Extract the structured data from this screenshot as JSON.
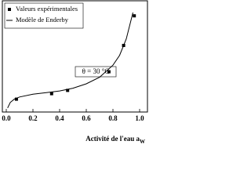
{
  "chart_data": {
    "type": "scatter",
    "xlabel": "Activité de l'eau a",
    "xlabel_sub": "W",
    "annotation": "θ = 30 °C",
    "xlim": [
      0,
      1
    ],
    "ylim": [
      0,
      1
    ],
    "xticks": [
      {
        "value": 0,
        "label": "0.0"
      },
      {
        "value": 0.2,
        "label": "0.2"
      },
      {
        "value": 0.4,
        "label": "0.4"
      },
      {
        "value": 0.6,
        "label": "0.6"
      },
      {
        "value": 0.8,
        "label": "0.8"
      },
      {
        "value": 1,
        "label": "1.0"
      }
    ],
    "series": [
      {
        "name": "Valeurs expérimentales",
        "style": "markers",
        "color": "#000000",
        "x": [
          0.076,
          0.34,
          0.46,
          0.77,
          0.88,
          0.96
        ],
        "values": [
          0.11,
          0.16,
          0.19,
          0.36,
          0.6,
          0.87
        ]
      },
      {
        "name": "Modèle de Enderby",
        "style": "line",
        "color": "#000000",
        "x": [
          0.01,
          0.03,
          0.06,
          0.1,
          0.2,
          0.3,
          0.4,
          0.5,
          0.6,
          0.7,
          0.8,
          0.85,
          0.9,
          0.95
        ],
        "values": [
          0.03,
          0.08,
          0.11,
          0.13,
          0.155,
          0.17,
          0.185,
          0.21,
          0.25,
          0.31,
          0.42,
          0.51,
          0.66,
          0.9
        ]
      }
    ]
  }
}
